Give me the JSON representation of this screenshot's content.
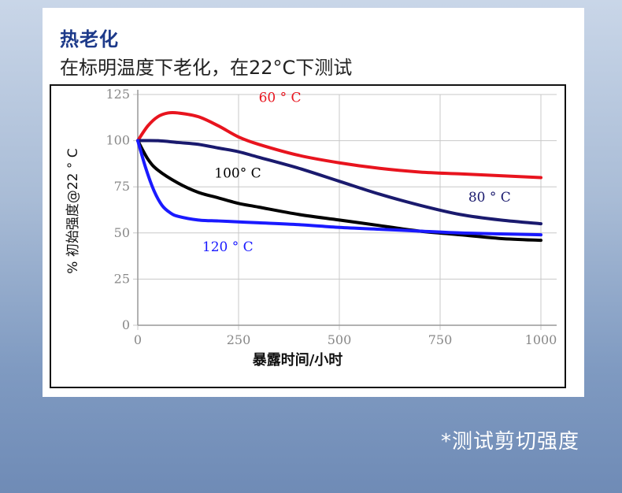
{
  "header": {
    "title": "热老化",
    "subtitle": "在标明温度下老化，在22°C下测试"
  },
  "footnote": "*测试剪切强度",
  "chart_data": {
    "type": "line",
    "xlabel": "暴露时间/小时",
    "ylabel": "% 初始强度@22 ° C",
    "xlim": [
      0,
      1000
    ],
    "ylim": [
      0,
      125
    ],
    "x_ticks": [
      "0",
      "250",
      "500",
      "750",
      "1000"
    ],
    "y_ticks": [
      "0",
      "25",
      "50",
      "75",
      "100",
      "125"
    ],
    "grid": true,
    "series": [
      {
        "name": "60 ° C",
        "color": "#e8141e",
        "x": [
          0,
          25,
          50,
          75,
          100,
          150,
          200,
          250,
          300,
          400,
          500,
          600,
          700,
          800,
          900,
          1000
        ],
        "y": [
          100,
          108,
          113,
          115,
          115,
          113,
          108,
          102,
          98,
          92,
          88,
          85,
          83,
          82,
          81,
          80
        ]
      },
      {
        "name": "80 ° C",
        "color": "#1a1a6e",
        "x": [
          0,
          50,
          100,
          150,
          200,
          250,
          300,
          400,
          500,
          600,
          700,
          800,
          900,
          1000
        ],
        "y": [
          100,
          100,
          99,
          98,
          96,
          94,
          91,
          85,
          78,
          71,
          65,
          60,
          57,
          55
        ]
      },
      {
        "name": "100° C",
        "color": "#000000",
        "x": [
          0,
          25,
          50,
          100,
          150,
          200,
          250,
          300,
          400,
          500,
          600,
          700,
          800,
          900,
          1000
        ],
        "y": [
          100,
          90,
          84,
          77,
          72,
          69,
          66,
          64,
          60,
          57,
          54,
          51,
          49,
          47,
          46
        ]
      },
      {
        "name": "120 ° C",
        "color": "#1a1aff",
        "x": [
          0,
          20,
          40,
          60,
          80,
          100,
          150,
          200,
          250,
          300,
          400,
          500,
          600,
          700,
          800,
          900,
          1000
        ],
        "y": [
          100,
          85,
          73,
          65,
          61,
          59,
          57,
          56.5,
          56,
          55.5,
          54.5,
          53,
          52,
          51,
          50,
          49.5,
          49
        ]
      }
    ],
    "labels": [
      {
        "text": "60 ° C",
        "x": 300,
        "y": 121,
        "color": "#e8141e"
      },
      {
        "text": "100° C",
        "x": 190,
        "y": 80,
        "color": "#000000"
      },
      {
        "text": "80 ° C",
        "x": 820,
        "y": 67,
        "color": "#1a1a6e"
      },
      {
        "text": "120 ° C",
        "x": 160,
        "y": 40,
        "color": "#1a1aff"
      }
    ]
  }
}
